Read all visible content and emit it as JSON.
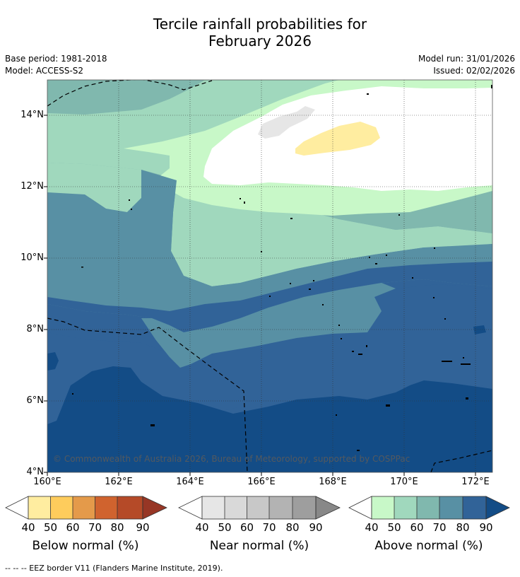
{
  "title_line1": "Tercile rainfall probabilities for",
  "title_line2": "February 2026",
  "base_period": "Base period: 1981-2018",
  "model": "Model: ACCESS-S2",
  "model_run": "Model run: 31/01/2026",
  "issued": "Issued: 02/02/2026",
  "copyright": "© Commonwealth of Australia 2026, Bureau of Meteorology, supported by COSPPac",
  "footer": "--  --  -- EEZ border V11 (Flanders Marine Institute, 2019).",
  "map": {
    "lon_range": [
      160,
      172.5
    ],
    "lat_range": [
      4,
      15
    ],
    "lat_labels": [
      "14°N",
      "12°N",
      "10°N",
      "8°N",
      "6°N",
      "4°N"
    ],
    "lon_labels": [
      "160°E",
      "162°E",
      "164°E",
      "166°E",
      "168°E",
      "170°E",
      "172°E"
    ]
  },
  "colorbars": {
    "below": {
      "title": "Below normal (%)",
      "ticks": [
        "40",
        "50",
        "60",
        "70",
        "80",
        "90"
      ],
      "colors": [
        "#ffeda0",
        "#fecc5c",
        "#e49a4a",
        "#d0632e",
        "#b54a28",
        "#973625"
      ]
    },
    "near": {
      "title": "Near normal (%)",
      "ticks": [
        "40",
        "50",
        "60",
        "70",
        "80",
        "90"
      ],
      "colors": [
        "#e6e6e6",
        "#d9d9d9",
        "#c8c8c8",
        "#b3b3b3",
        "#9e9e9e",
        "#888888"
      ]
    },
    "above": {
      "title": "Above normal (%)",
      "ticks": [
        "40",
        "50",
        "60",
        "70",
        "80",
        "90"
      ],
      "colors": [
        "#c8f8c8",
        "#a0d8bd",
        "#80b8ae",
        "#5890a4",
        "#316398",
        "#134c86"
      ]
    }
  }
}
